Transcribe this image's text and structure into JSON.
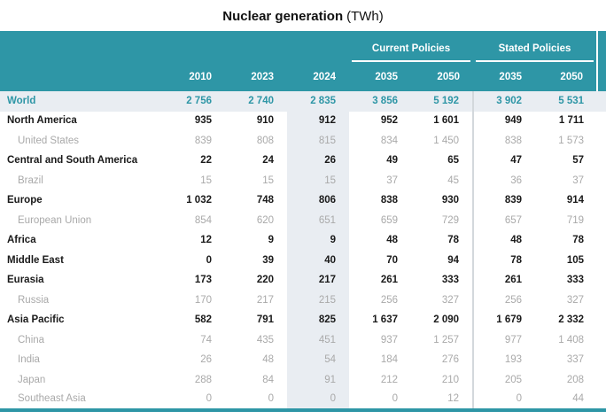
{
  "title": {
    "main": "Nuclear generation",
    "unit": "(TWh)"
  },
  "colors": {
    "header_teal": "#2e96a6",
    "highlight_column_bg": "#e9edf2",
    "world_row_bg": "#e9edf2",
    "world_text": "#2e96a6",
    "region_text": "#1a1a1a",
    "sub_text": "#a9a9a9",
    "group_separator": "#d3d8dc",
    "bottom_bar": "#2e96a6"
  },
  "chart_data": {
    "type": "table",
    "title": "Nuclear generation (TWh)",
    "unit": "TWh",
    "column_groups": [
      {
        "label": "Current Policies",
        "columns": [
          "2035",
          "2050"
        ]
      },
      {
        "label": "Stated Policies",
        "columns": [
          "2035",
          "2050"
        ]
      }
    ],
    "columns": [
      "2010",
      "2023",
      "2024",
      "2035",
      "2050",
      "2035",
      "2050"
    ],
    "highlighted_column": "2024",
    "rows": [
      {
        "label": "World",
        "style": "world",
        "values": [
          "2 756",
          "2 740",
          "2 835",
          "3 856",
          "5 192",
          "3 902",
          "5 531"
        ]
      },
      {
        "label": "North America",
        "style": "region",
        "values": [
          "935",
          "910",
          "912",
          "952",
          "1 601",
          "949",
          "1 711"
        ]
      },
      {
        "label": "United States",
        "style": "sub",
        "values": [
          "839",
          "808",
          "815",
          "834",
          "1 450",
          "838",
          "1 573"
        ]
      },
      {
        "label": "Central and South America",
        "style": "region",
        "values": [
          "22",
          "24",
          "26",
          "49",
          "65",
          "47",
          "57"
        ]
      },
      {
        "label": "Brazil",
        "style": "sub",
        "values": [
          "15",
          "15",
          "15",
          "37",
          "45",
          "36",
          "37"
        ]
      },
      {
        "label": "Europe",
        "style": "region",
        "values": [
          "1 032",
          "748",
          "806",
          "838",
          "930",
          "839",
          "914"
        ]
      },
      {
        "label": "European Union",
        "style": "sub",
        "values": [
          "854",
          "620",
          "651",
          "659",
          "729",
          "657",
          "719"
        ]
      },
      {
        "label": "Africa",
        "style": "region",
        "values": [
          "12",
          "9",
          "9",
          "48",
          "78",
          "48",
          "78"
        ]
      },
      {
        "label": "Middle East",
        "style": "region",
        "values": [
          "0",
          "39",
          "40",
          "70",
          "94",
          "78",
          "105"
        ]
      },
      {
        "label": "Eurasia",
        "style": "region",
        "values": [
          "173",
          "220",
          "217",
          "261",
          "333",
          "261",
          "333"
        ]
      },
      {
        "label": "Russia",
        "style": "sub",
        "values": [
          "170",
          "217",
          "215",
          "256",
          "327",
          "256",
          "327"
        ]
      },
      {
        "label": "Asia Pacific",
        "style": "region",
        "values": [
          "582",
          "791",
          "825",
          "1 637",
          "2 090",
          "1 679",
          "2 332"
        ]
      },
      {
        "label": "China",
        "style": "sub",
        "values": [
          "74",
          "435",
          "451",
          "937",
          "1 257",
          "977",
          "1 408"
        ]
      },
      {
        "label": "India",
        "style": "sub",
        "values": [
          "26",
          "48",
          "54",
          "184",
          "276",
          "193",
          "337"
        ]
      },
      {
        "label": "Japan",
        "style": "sub",
        "values": [
          "288",
          "84",
          "91",
          "212",
          "210",
          "205",
          "208"
        ]
      },
      {
        "label": "Southeast Asia",
        "style": "sub",
        "values": [
          "0",
          "0",
          "0",
          "0",
          "12",
          "0",
          "44"
        ]
      }
    ]
  }
}
